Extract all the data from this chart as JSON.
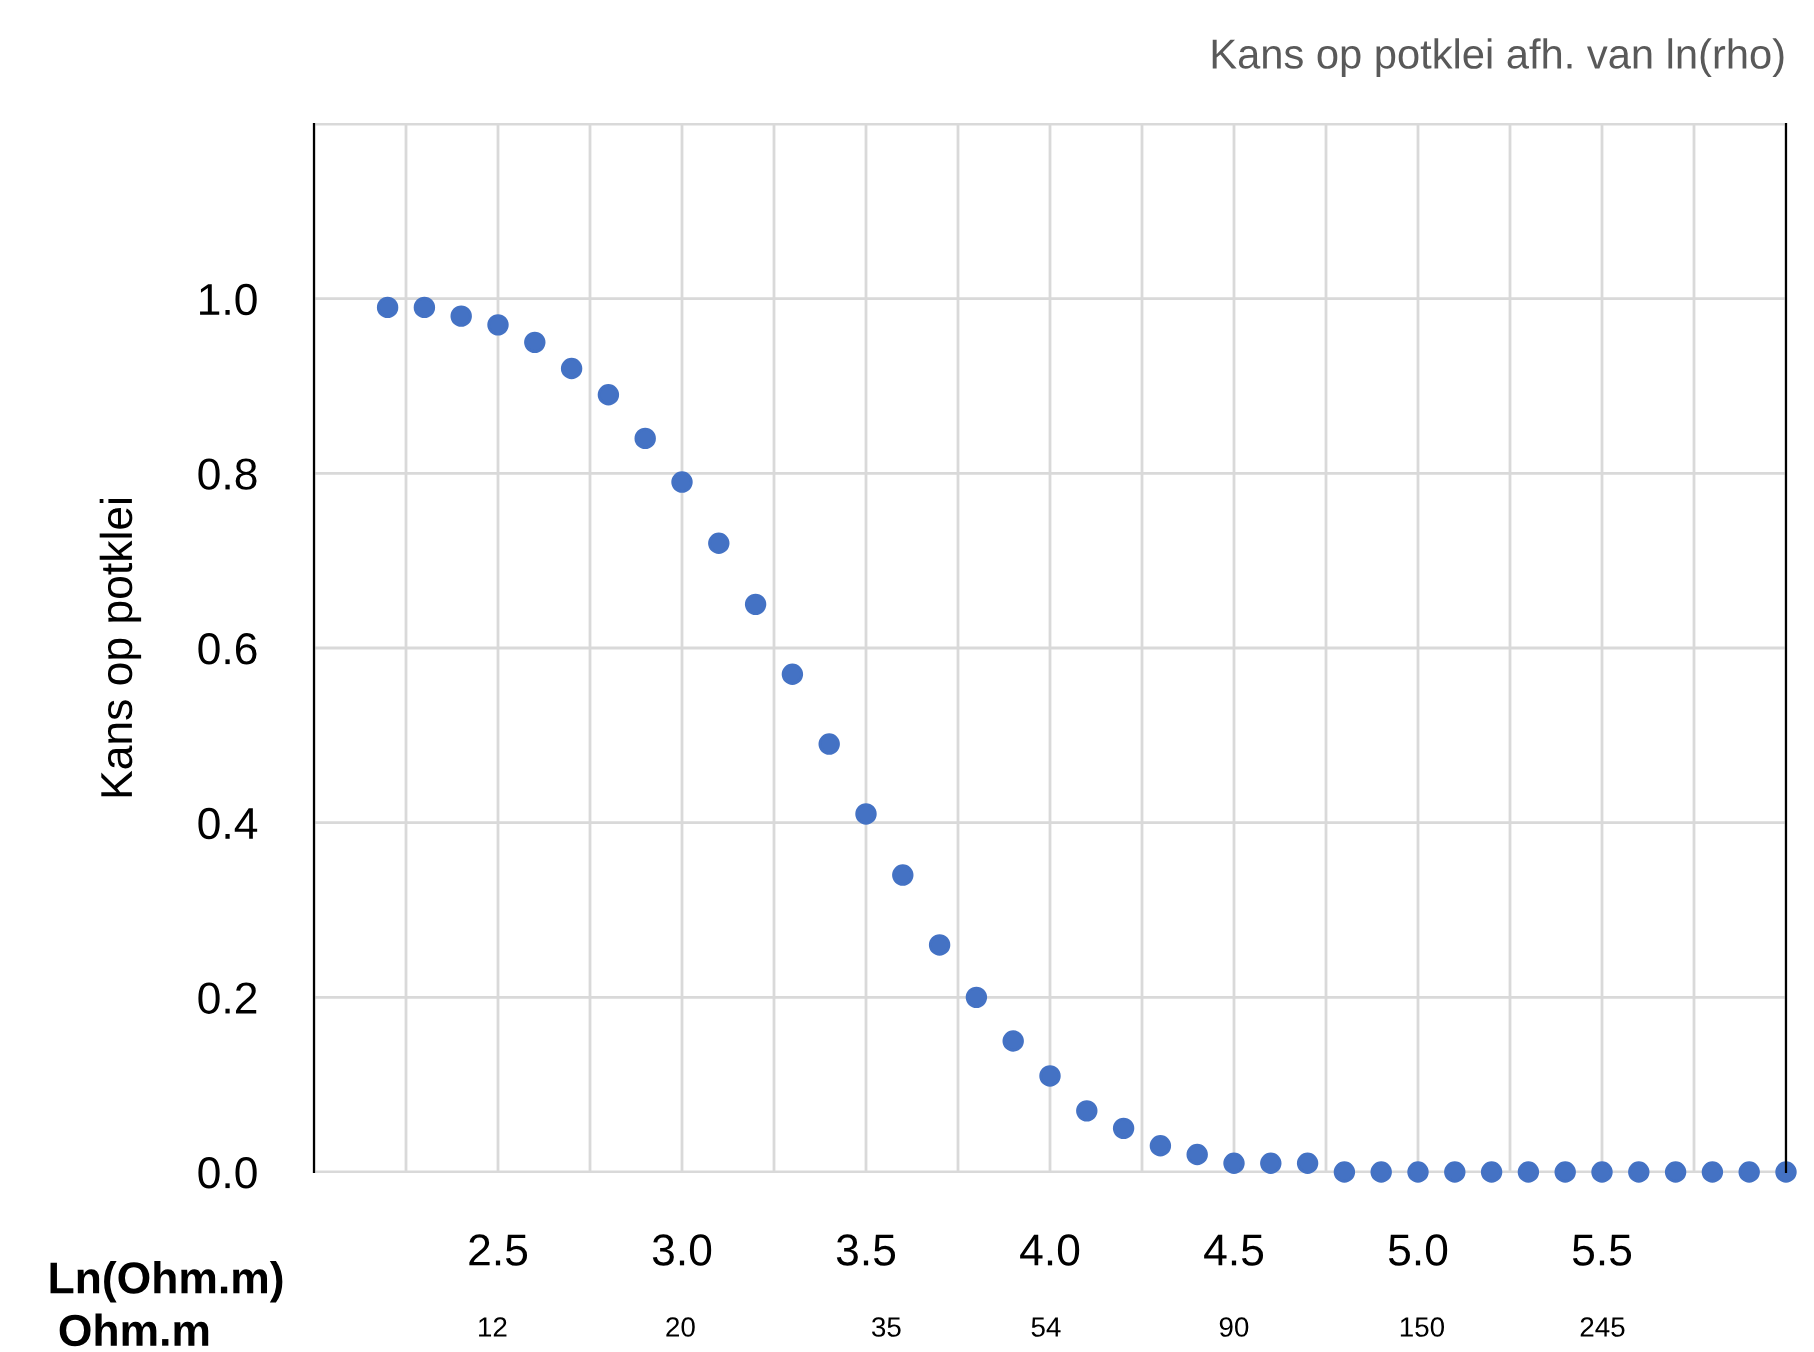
{
  "chart_data": {
    "type": "scatter",
    "title": "Kans op potklei afh. van ln(rho)",
    "ylabel": "Kans op potklei",
    "xlabel": "Ln(Ohm.m)",
    "x2label": "Ohm.m",
    "series": [
      {
        "color": "#4472c4",
        "x": [
          2.2,
          2.3,
          2.4,
          2.5,
          2.6,
          2.7,
          2.8,
          2.9,
          3.0,
          3.1,
          3.2,
          3.3,
          3.4,
          3.5,
          3.6,
          3.7,
          3.8,
          3.9,
          4.0,
          4.1,
          4.2,
          4.3,
          4.4,
          4.5,
          4.6,
          4.7,
          4.8,
          4.9,
          5.0,
          5.1,
          5.2,
          5.3,
          5.4,
          5.5,
          5.6,
          5.7,
          5.8,
          5.9,
          6.0
        ],
        "values": [
          0.99,
          0.99,
          0.98,
          0.97,
          0.95,
          0.92,
          0.89,
          0.84,
          0.79,
          0.72,
          0.65,
          0.57,
          0.49,
          0.41,
          0.34,
          0.26,
          0.2,
          0.15,
          0.11,
          0.07,
          0.05,
          0.03,
          0.02,
          0.01,
          0.01,
          0.01,
          0.0,
          0.0,
          0.0,
          0.0,
          0.0,
          0.0,
          0.0,
          0.0,
          0.0,
          0.0,
          0.0,
          0.0,
          0.0
        ]
      }
    ],
    "marker": "circle",
    "grid": true,
    "legend": false,
    "xlim": [
      2.0,
      6.0
    ],
    "xticks": [
      {
        "value": 2.0,
        "label": null
      },
      {
        "value": 2.25,
        "label": null
      },
      {
        "value": 2.5,
        "label": "2.5"
      },
      {
        "value": 2.75,
        "label": null
      },
      {
        "value": 3.0,
        "label": "3.0"
      },
      {
        "value": 3.25,
        "label": null
      },
      {
        "value": 3.5,
        "label": "3.5"
      },
      {
        "value": 3.75,
        "label": null
      },
      {
        "value": 4.0,
        "label": "4.0"
      },
      {
        "value": 4.25,
        "label": null
      },
      {
        "value": 4.5,
        "label": "4.5"
      },
      {
        "value": 4.75,
        "label": null
      },
      {
        "value": 5.0,
        "label": "5.0"
      },
      {
        "value": 5.25,
        "label": null
      },
      {
        "value": 5.5,
        "label": "5.5"
      },
      {
        "value": 5.75,
        "label": null
      },
      {
        "value": 6.0,
        "label": null
      }
    ],
    "log": "x2",
    "x2lim": [
      7.39,
      403.4
    ],
    "x2ticks": [
      12,
      20,
      35,
      54,
      90,
      150,
      245
    ],
    "ylim": [
      0,
      1.2
    ],
    "yticks": [
      {
        "value": 0,
        "label": "0.0"
      },
      {
        "value": 0.2,
        "label": "0.2"
      },
      {
        "value": 0.4,
        "label": "0.4"
      },
      {
        "value": 0.6,
        "label": "0.6"
      },
      {
        "value": 0.8,
        "label": "0.8"
      },
      {
        "value": 1.0,
        "label": "1.0"
      },
      {
        "value": 1.2,
        "label": null
      }
    ]
  }
}
